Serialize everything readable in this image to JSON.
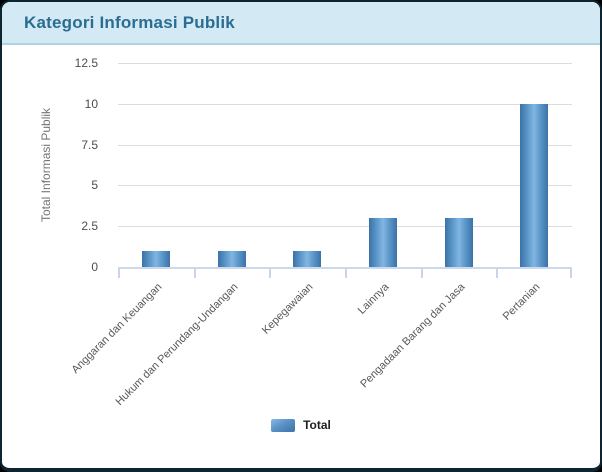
{
  "header": {
    "title": "Kategori Informasi Publik",
    "bg_color": "#d3e9f4",
    "title_color": "#2b6d92"
  },
  "legend": {
    "label": "Total",
    "position": "bottom"
  },
  "chart_data": {
    "type": "bar",
    "title": "Kategori Informasi Publik",
    "categories": [
      "Anggaran dan Keuangan",
      "Hukum dan Perundang-Undangan",
      "Kepegawaian",
      "Lainnya",
      "Pengadaan Barang dan Jasa",
      "Pertanian"
    ],
    "series": [
      {
        "name": "Total",
        "values": [
          1,
          1,
          1,
          3,
          3,
          10
        ]
      }
    ],
    "xlabel": "",
    "ylabel": "Total Informasi Publik",
    "ylim": [
      0,
      12.5
    ],
    "yticks": [
      "0",
      "2.5",
      "5",
      "7.5",
      "10",
      "12.5"
    ],
    "grid": "horizontal",
    "legend_position": "bottom",
    "x_label_rotation_deg": -45,
    "colors": {
      "bar_edge": "#3b72a7",
      "bar_center": "#83b5e2",
      "gridline": "#dcdcdc",
      "axis_line": "#ccd9ea"
    }
  }
}
